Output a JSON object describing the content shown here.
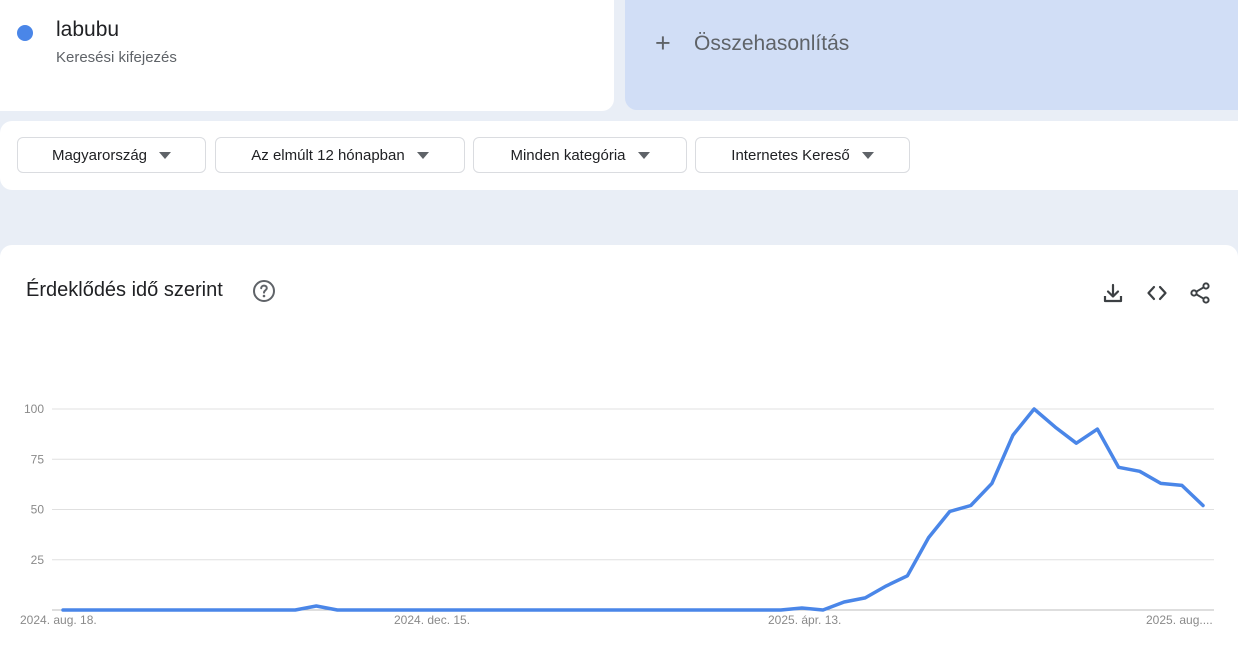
{
  "term": {
    "name": "labubu",
    "subtitle": "Keresési kifejezés",
    "color": "#4a86e8"
  },
  "compare": {
    "label": "Összehasonlítás"
  },
  "filters": [
    {
      "label": "Magyarország"
    },
    {
      "label": "Az elmúlt 12 hónapban"
    },
    {
      "label": "Minden kategória"
    },
    {
      "label": "Internetes Kereső"
    }
  ],
  "chart_title": "Érdeklődés idő szerint",
  "actions": {
    "download": "download-icon",
    "embed": "code-icon",
    "share": "share-icon"
  },
  "chart_data": {
    "type": "line",
    "title": "Érdeklődés idő szerint",
    "xlabel": "",
    "ylabel": "",
    "ylim": [
      0,
      100
    ],
    "yticks": [
      25,
      50,
      75,
      100
    ],
    "x_tick_labels": [
      "2024. aug. 18.",
      "2024. dec. 15.",
      "2025. ápr. 13.",
      "2025. aug...."
    ],
    "grid": true,
    "series": [
      {
        "color": "#4a86e8",
        "values": [
          0,
          0,
          0,
          0,
          0,
          0,
          0,
          0,
          0,
          0,
          0,
          0,
          2,
          0,
          0,
          0,
          0,
          0,
          0,
          0,
          0,
          0,
          0,
          0,
          0,
          0,
          0,
          0,
          0,
          0,
          0,
          0,
          0,
          0,
          0,
          1,
          0,
          4,
          6,
          12,
          17,
          36,
          49,
          52,
          63,
          87,
          100,
          91,
          83,
          90,
          71,
          69,
          63,
          62,
          52
        ]
      }
    ]
  }
}
